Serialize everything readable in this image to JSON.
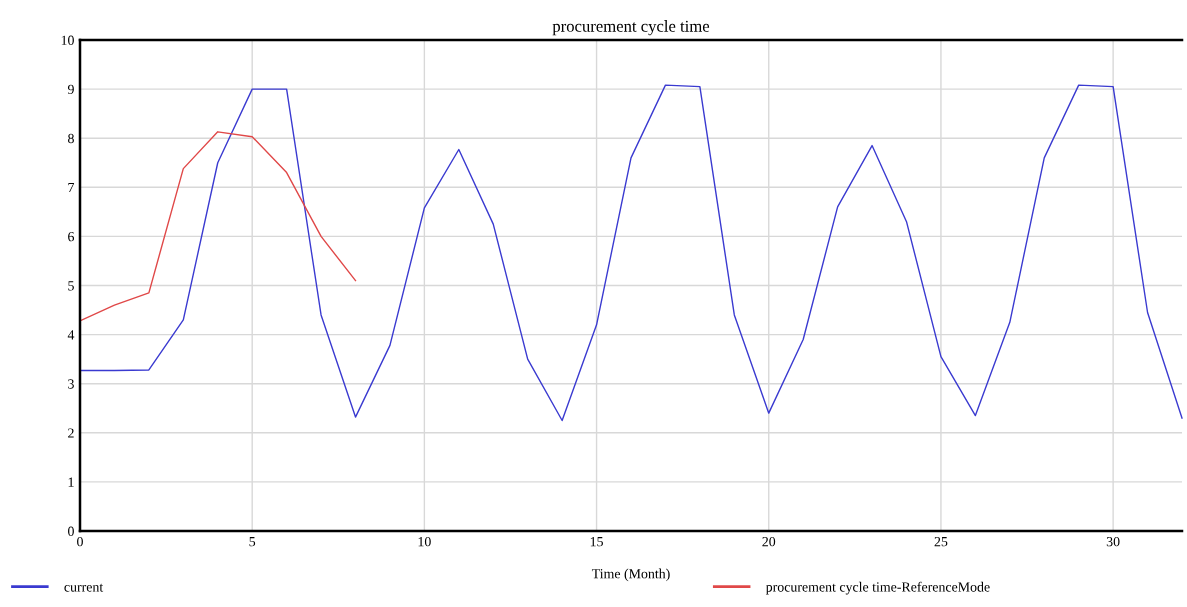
{
  "chart_data": {
    "type": "line",
    "title": "procurement cycle time",
    "xlabel": "Time (Month)",
    "xlim": [
      0,
      32
    ],
    "xticks": [
      0,
      5,
      10,
      15,
      20,
      25,
      30
    ],
    "ylim": [
      0,
      10
    ],
    "yticks": [
      0,
      1,
      2,
      3,
      4,
      5,
      6,
      7,
      8,
      9,
      10
    ],
    "grid": true,
    "legend": "bottom",
    "marker": "none",
    "line_style": "solid",
    "series": [
      {
        "name": "current",
        "color": "#3a3ad0",
        "x": [
          0,
          1,
          2,
          3,
          4,
          5,
          6,
          7,
          8,
          9,
          10,
          11,
          12,
          13,
          14,
          15,
          16,
          17,
          18,
          19,
          20,
          21,
          22,
          23,
          24,
          25,
          26,
          27,
          28,
          29,
          30,
          31,
          32
        ],
        "values": [
          3.27,
          3.27,
          3.28,
          4.3,
          7.5,
          9.0,
          9.0,
          4.4,
          2.32,
          3.78,
          6.58,
          7.77,
          6.25,
          3.5,
          2.25,
          4.2,
          7.6,
          9.08,
          9.05,
          4.4,
          2.4,
          3.9,
          6.6,
          7.85,
          6.3,
          3.55,
          2.35,
          4.25,
          7.6,
          9.08,
          9.05,
          4.45,
          2.3
        ]
      },
      {
        "name": "procurement cycle time-ReferenceMode",
        "color": "#e04848",
        "x": [
          0,
          1,
          2,
          3,
          4,
          5,
          6,
          7,
          8
        ],
        "values": [
          4.28,
          4.6,
          4.85,
          7.38,
          8.13,
          8.03,
          7.3,
          6.0,
          5.1
        ]
      }
    ]
  }
}
